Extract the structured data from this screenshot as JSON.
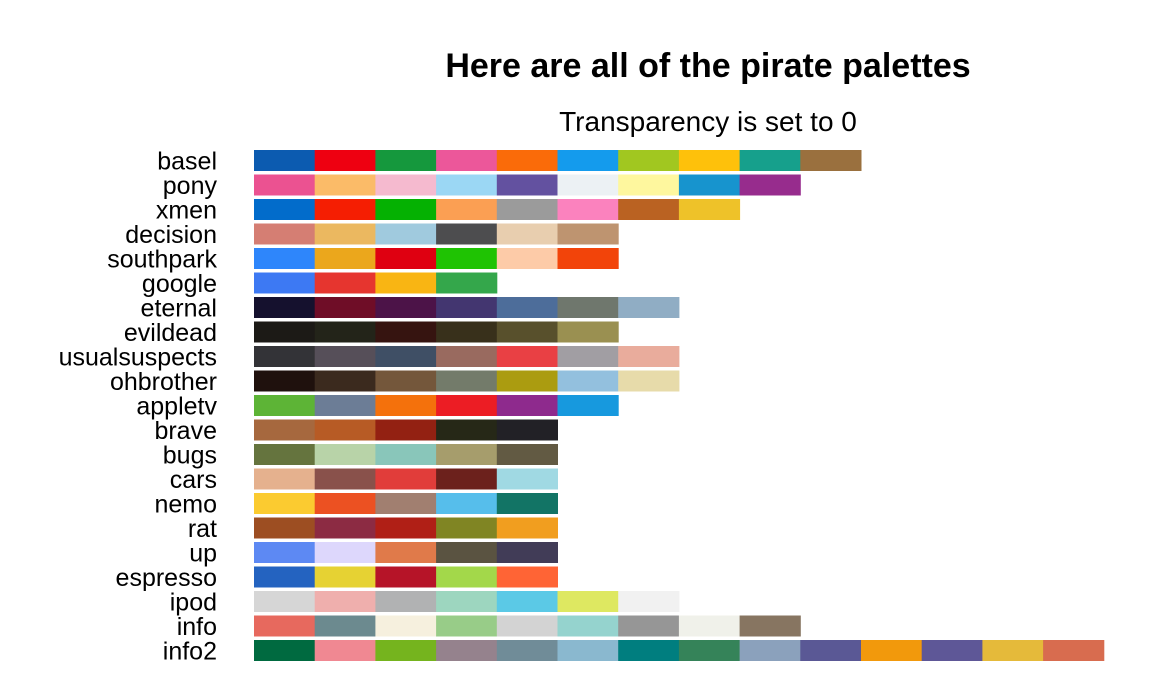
{
  "chart_data": {
    "type": "table",
    "title": "Here are all of the pirate palettes",
    "subtitle": "Transparency is set to 0",
    "palettes": [
      {
        "name": "basel",
        "colors": [
          "#0C5BB0",
          "#EE0011",
          "#15983D",
          "#EC579A",
          "#FA6B09",
          "#149BED",
          "#A1C720",
          "#FEC10B",
          "#16A08C",
          "#9A703E"
        ]
      },
      {
        "name": "pony",
        "colors": [
          "#EB5291",
          "#FBBB68",
          "#F5BACF",
          "#9BD7F4",
          "#6351A0",
          "#ECF1F4",
          "#FEF79E",
          "#1794CE",
          "#972C8D"
        ]
      },
      {
        "name": "xmen",
        "colors": [
          "#026CCB",
          "#F51E02",
          "#05B102",
          "#FB9F53",
          "#9B9B9B",
          "#FB82BE",
          "#BA6222",
          "#EEC229"
        ]
      },
      {
        "name": "decision",
        "colors": [
          "#D57E73",
          "#EBB860",
          "#A0CADE",
          "#4D4D4F",
          "#E8CEAF",
          "#BE9470"
        ]
      },
      {
        "name": "southpark",
        "colors": [
          "#2E86FB",
          "#EBA71C",
          "#DF0011",
          "#1FC303",
          "#FDCBA8",
          "#F2440A"
        ]
      },
      {
        "name": "google",
        "colors": [
          "#3D79F3",
          "#E6352F",
          "#F9B513",
          "#34A74B"
        ]
      },
      {
        "name": "eternal",
        "colors": [
          "#15112E",
          "#6F0D27",
          "#4C1348",
          "#433670",
          "#4D6D9A",
          "#6F776D",
          "#90ADC4"
        ]
      },
      {
        "name": "evildead",
        "colors": [
          "#1C1A16",
          "#232419",
          "#361410",
          "#38301B",
          "#58502C",
          "#9A9051"
        ]
      },
      {
        "name": "usualsuspects",
        "colors": [
          "#333337",
          "#564F59",
          "#3F4F65",
          "#996A5F",
          "#E94044",
          "#A19EA3",
          "#E9AC9C"
        ]
      },
      {
        "name": "ohbrother",
        "colors": [
          "#1F110D",
          "#3B2A1E",
          "#74573B",
          "#737B6A",
          "#AB9C10",
          "#93C0DE",
          "#E7DBAA"
        ]
      },
      {
        "name": "appletv",
        "colors": [
          "#5DB436",
          "#6C7D96",
          "#F4710C",
          "#EC1D24",
          "#8E2A8D",
          "#1799DE"
        ]
      },
      {
        "name": "brave",
        "colors": [
          "#A6683E",
          "#B75B25",
          "#932112",
          "#262817",
          "#222126"
        ]
      },
      {
        "name": "bugs",
        "colors": [
          "#65743E",
          "#B8D3A8",
          "#89C6BA",
          "#A69D6C",
          "#625A43"
        ]
      },
      {
        "name": "cars",
        "colors": [
          "#E5B18E",
          "#89514B",
          "#E13D3A",
          "#6C211C",
          "#A0D9E3"
        ]
      },
      {
        "name": "nemo",
        "colors": [
          "#FBCB30",
          "#EC5122",
          "#A17F70",
          "#56BEEB",
          "#127465"
        ]
      },
      {
        "name": "rat",
        "colors": [
          "#9D4E22",
          "#8C2B43",
          "#B01F16",
          "#808523",
          "#F19E1F"
        ]
      },
      {
        "name": "up",
        "colors": [
          "#5D89F3",
          "#DDD7FC",
          "#E07A4A",
          "#5A5341",
          "#413C57"
        ]
      },
      {
        "name": "espresso",
        "colors": [
          "#2463C0",
          "#E6D233",
          "#B61428",
          "#A3D84A",
          "#FF6435"
        ]
      },
      {
        "name": "ipod",
        "colors": [
          "#D6D6D6",
          "#EFAFAD",
          "#B1B2B3",
          "#9DD6BF",
          "#5BC9E6",
          "#DEE861",
          "#F1F1F1"
        ]
      },
      {
        "name": "info",
        "colors": [
          "#E7695E",
          "#6C8A8F",
          "#F6F0DE",
          "#98CC88",
          "#D3D3D3",
          "#95D3CE",
          "#969696",
          "#F0F1EA",
          "#877561"
        ]
      },
      {
        "name": "info2",
        "colors": [
          "#006A40",
          "#F08892",
          "#75B41E",
          "#95828D",
          "#708C98",
          "#8AB8CF",
          "#007E7F",
          "#358359",
          "#8BA1BC",
          "#5A5895",
          "#F2990C",
          "#5E5797",
          "#E5BA3A",
          "#D86C4F"
        ]
      }
    ]
  }
}
